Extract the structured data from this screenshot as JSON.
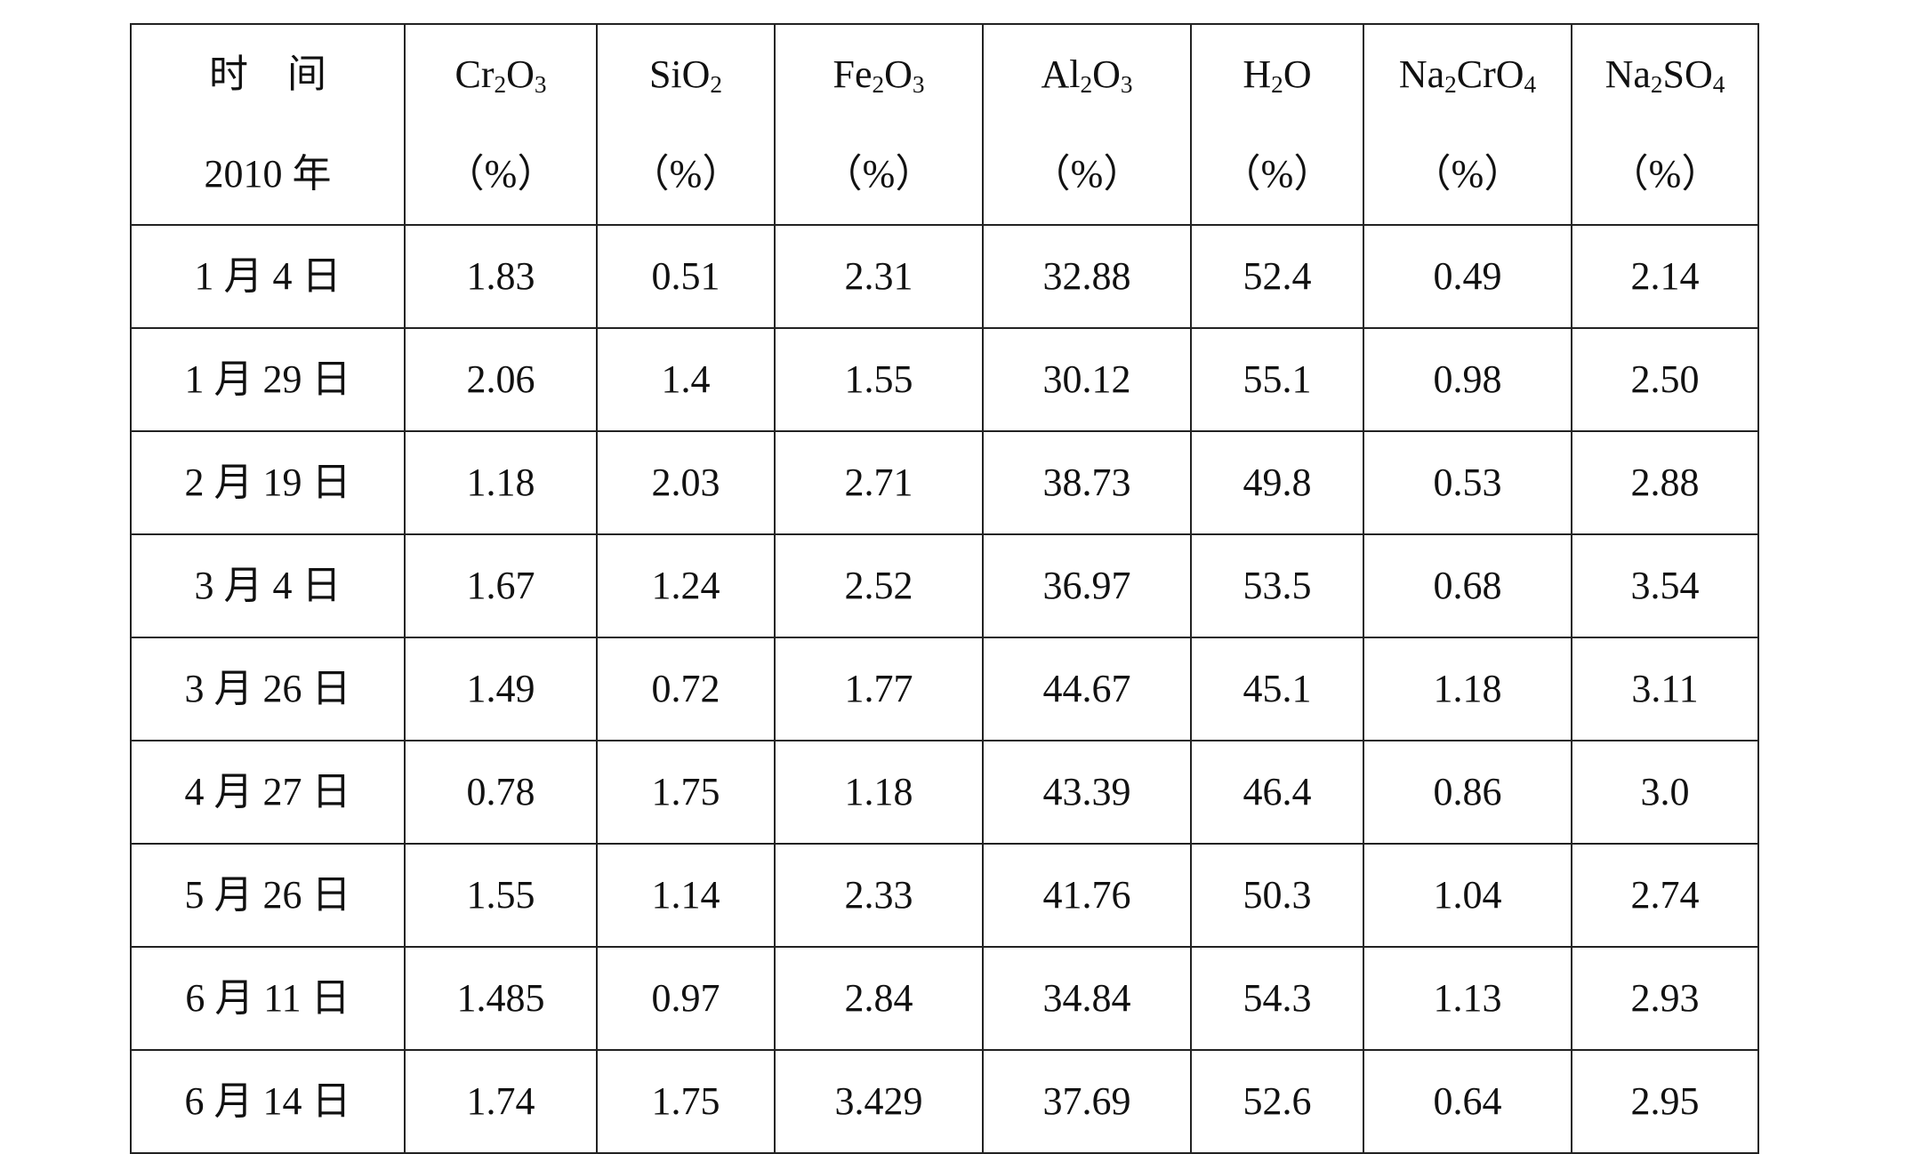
{
  "table": {
    "header": {
      "time_line1": "时　间",
      "time_line2": "2010 年",
      "columns": [
        {
          "base1": "Cr",
          "sub1": "2",
          "base2": "O",
          "sub2": "3",
          "base3": "",
          "sub3": "",
          "unit": "（%）"
        },
        {
          "base1": "SiO",
          "sub1": "2",
          "base2": "",
          "sub2": "",
          "base3": "",
          "sub3": "",
          "unit": "（%）"
        },
        {
          "base1": "Fe",
          "sub1": "2",
          "base2": "O",
          "sub2": "3",
          "base3": "",
          "sub3": "",
          "unit": "（%）"
        },
        {
          "base1": "Al",
          "sub1": "2",
          "base2": "O",
          "sub2": "3",
          "base3": "",
          "sub3": "",
          "unit": "（%）"
        },
        {
          "base1": "H",
          "sub1": "2",
          "base2": "O",
          "sub2": "",
          "base3": "",
          "sub3": "",
          "unit": "（%）"
        },
        {
          "base1": "Na",
          "sub1": "2",
          "base2": "CrO",
          "sub2": "4",
          "base3": "",
          "sub3": "",
          "unit": "（%）"
        },
        {
          "base1": "Na",
          "sub1": "2",
          "base2": "SO",
          "sub2": "4",
          "base3": "",
          "sub3": "",
          "unit": "（%）"
        }
      ]
    },
    "rows": [
      [
        "1 月 4 日",
        "1.83",
        "0.51",
        "2.31",
        "32.88",
        "52.4",
        "0.49",
        "2.14"
      ],
      [
        "1 月 29 日",
        "2.06",
        "1.4",
        "1.55",
        "30.12",
        "55.1",
        "0.98",
        "2.50"
      ],
      [
        "2 月 19 日",
        "1.18",
        "2.03",
        "2.71",
        "38.73",
        "49.8",
        "0.53",
        "2.88"
      ],
      [
        "3 月 4 日",
        "1.67",
        "1.24",
        "2.52",
        "36.97",
        "53.5",
        "0.68",
        "3.54"
      ],
      [
        "3 月 26 日",
        "1.49",
        "0.72",
        "1.77",
        "44.67",
        "45.1",
        "1.18",
        "3.11"
      ],
      [
        "4 月 27 日",
        "0.78",
        "1.75",
        "1.18",
        "43.39",
        "46.4",
        "0.86",
        "3.0"
      ],
      [
        "5 月 26 日",
        "1.55",
        "1.14",
        "2.33",
        "41.76",
        "50.3",
        "1.04",
        "2.74"
      ],
      [
        "6 月 11 日",
        "1.485",
        "0.97",
        "2.84",
        "34.84",
        "54.3",
        "1.13",
        "2.93"
      ],
      [
        "6 月 14 日",
        "1.74",
        "1.75",
        "3.429",
        "37.69",
        "52.6",
        "0.64",
        "2.95"
      ]
    ]
  }
}
